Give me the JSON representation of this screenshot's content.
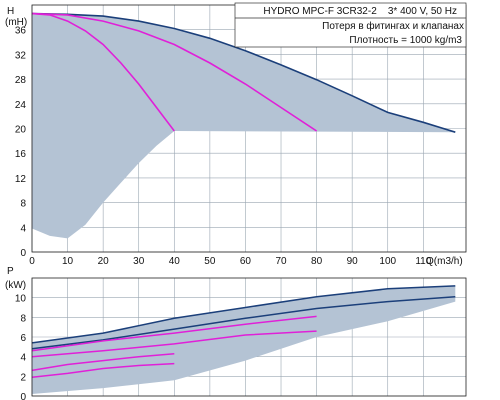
{
  "chart_data": [
    {
      "type": "line",
      "panel": "head",
      "title": "HYDRO MPC-F 3CR32-2    3* 400 V, 50 Hz",
      "annotations": [
        "Потеря в фитингах и клапанах",
        "Плотность = 1000 kg/m3"
      ],
      "ylabel": "H",
      "yunit": "(mH)",
      "xlabel": "Q(m3/h)",
      "xlim": [
        0,
        122
      ],
      "ylim": [
        0,
        40
      ],
      "x_ticks": [
        0,
        10,
        20,
        30,
        40,
        50,
        60,
        70,
        80,
        90,
        100,
        110
      ],
      "y_ticks": [
        0,
        4,
        8,
        12,
        16,
        20,
        24,
        28,
        32,
        36
      ],
      "grid": true,
      "colors": {
        "max_curve": "#1b3f7a",
        "part_curves": "#e020d8",
        "area": "#b4c3d4",
        "grid": "#9aa6b2"
      },
      "series": [
        {
          "role": "max-curve",
          "x": [
            0,
            10,
            20,
            30,
            40,
            50,
            60,
            70,
            80,
            90,
            100,
            110,
            119
          ],
          "y": [
            38.6,
            38.5,
            38.2,
            37.4,
            36.2,
            34.6,
            32.6,
            30.3,
            27.9,
            25.3,
            22.6,
            21.0,
            19.4
          ]
        },
        {
          "role": "1-pump-curve",
          "x": [
            0,
            5,
            10,
            15,
            20,
            25,
            30,
            35,
            40
          ],
          "y": [
            38.6,
            38.4,
            37.4,
            35.8,
            33.6,
            30.6,
            27.2,
            23.4,
            19.6
          ]
        },
        {
          "role": "2-pump-curve",
          "x": [
            0,
            10,
            20,
            30,
            40,
            50,
            60,
            70,
            80
          ],
          "y": [
            38.6,
            38.4,
            37.4,
            35.8,
            33.6,
            30.6,
            27.2,
            23.4,
            19.6
          ]
        },
        {
          "role": "operating-area-boundary",
          "x": [
            0,
            5,
            10,
            15,
            20,
            25,
            30,
            35,
            40
          ],
          "y": [
            3.8,
            2.6,
            2.2,
            4.4,
            8.0,
            11.2,
            14.4,
            17.2,
            19.6
          ]
        }
      ]
    },
    {
      "type": "line",
      "panel": "power",
      "ylabel": "P",
      "yunit": "(kW)",
      "xlim": [
        0,
        122
      ],
      "ylim": [
        0,
        12
      ],
      "y_ticks": [
        0,
        2,
        4,
        6,
        8,
        10
      ],
      "grid": true,
      "series": [
        {
          "role": "p1-max",
          "x": [
            0,
            20,
            40,
            60,
            80,
            100,
            119
          ],
          "y": [
            5.4,
            6.4,
            7.9,
            9.0,
            10.1,
            10.9,
            11.2
          ]
        },
        {
          "role": "p2-max",
          "x": [
            0,
            20,
            40,
            60,
            80,
            100,
            119
          ],
          "y": [
            4.8,
            5.7,
            6.8,
            7.9,
            8.9,
            9.6,
            10.1
          ]
        },
        {
          "role": "p1-2pump",
          "x": [
            0,
            20,
            40,
            60,
            80
          ],
          "y": [
            4.6,
            5.6,
            6.4,
            7.3,
            8.1
          ]
        },
        {
          "role": "p2-2pump",
          "x": [
            0,
            20,
            40,
            60,
            80
          ],
          "y": [
            4.0,
            4.6,
            5.3,
            6.2,
            6.6
          ]
        },
        {
          "role": "p1-1pump",
          "x": [
            0,
            10,
            20,
            30,
            40
          ],
          "y": [
            2.6,
            3.2,
            3.6,
            4.0,
            4.3
          ]
        },
        {
          "role": "p2-1pump",
          "x": [
            0,
            10,
            20,
            30,
            40
          ],
          "y": [
            1.9,
            2.3,
            2.8,
            3.1,
            3.3
          ]
        },
        {
          "role": "area-lower",
          "x": [
            0,
            20,
            40,
            60,
            80,
            100,
            119
          ],
          "y": [
            0.2,
            0.8,
            1.6,
            3.6,
            6.0,
            7.6,
            9.6
          ]
        }
      ]
    }
  ]
}
